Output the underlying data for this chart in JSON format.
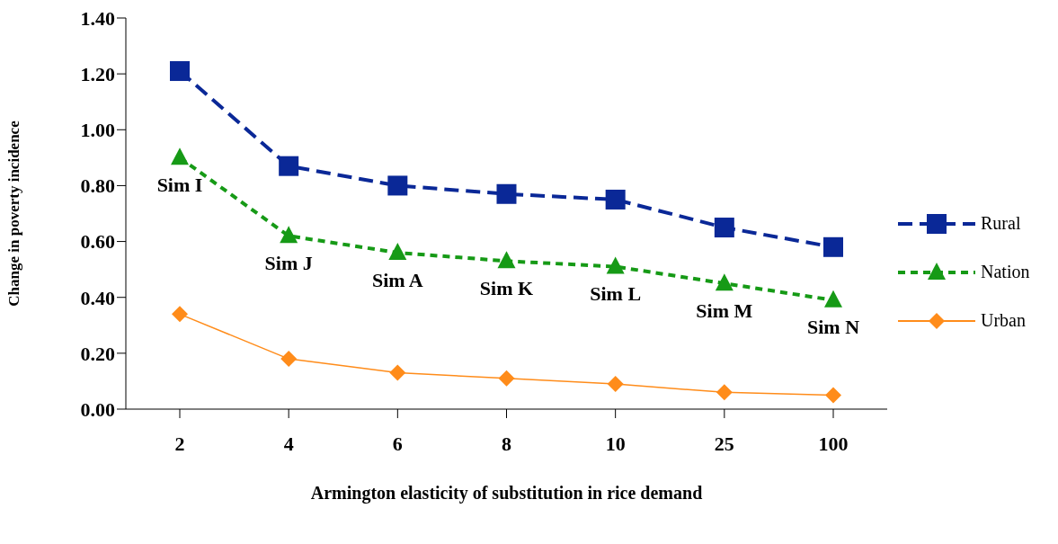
{
  "chart_data": {
    "type": "line",
    "xlabel": "Armington elasticity of substitution in rice demand",
    "ylabel": "Change in poverty incidence",
    "categories": [
      "2",
      "4",
      "6",
      "8",
      "10",
      "25",
      "100"
    ],
    "series": [
      {
        "name": "Rural",
        "color": "#0a2897",
        "values": [
          1.21,
          0.87,
          0.8,
          0.77,
          0.75,
          0.65,
          0.58
        ],
        "marker": "square",
        "line_style": "dashed"
      },
      {
        "name": "Nation",
        "color": "#169a16",
        "values": [
          0.9,
          0.62,
          0.56,
          0.53,
          0.51,
          0.45,
          0.39
        ],
        "marker": "triangle",
        "line_style": "dotted"
      },
      {
        "name": "Urban",
        "color": "#ff8c1a",
        "values": [
          0.34,
          0.18,
          0.13,
          0.11,
          0.09,
          0.06,
          0.05
        ],
        "marker": "diamond",
        "line_style": "solid"
      }
    ],
    "ylim": [
      0,
      1.4
    ],
    "yticks": [
      {
        "value": 0,
        "label": "0.00"
      },
      {
        "value": 0.2,
        "label": "0.20"
      },
      {
        "value": 0.4,
        "label": "0.40"
      },
      {
        "value": 0.6,
        "label": "0.60"
      },
      {
        "value": 0.8,
        "label": "0.80"
      },
      {
        "value": 1.0,
        "label": "1.00"
      },
      {
        "value": 1.2,
        "label": "1.20"
      },
      {
        "value": 1.4,
        "label": "1.40"
      }
    ],
    "grid": false,
    "legend": "right",
    "annotations": [
      {
        "text": "Sim I",
        "x": "2",
        "y": 0.9
      },
      {
        "text": "Sim J",
        "x": "4",
        "y": 0.62
      },
      {
        "text": "Sim A",
        "x": "6",
        "y": 0.56
      },
      {
        "text": "Sim K",
        "x": "8",
        "y": 0.53
      },
      {
        "text": "Sim L",
        "x": "10",
        "y": 0.51
      },
      {
        "text": "Sim M",
        "x": "25",
        "y": 0.45
      },
      {
        "text": "Sim N",
        "x": "100",
        "y": 0.39
      }
    ]
  }
}
